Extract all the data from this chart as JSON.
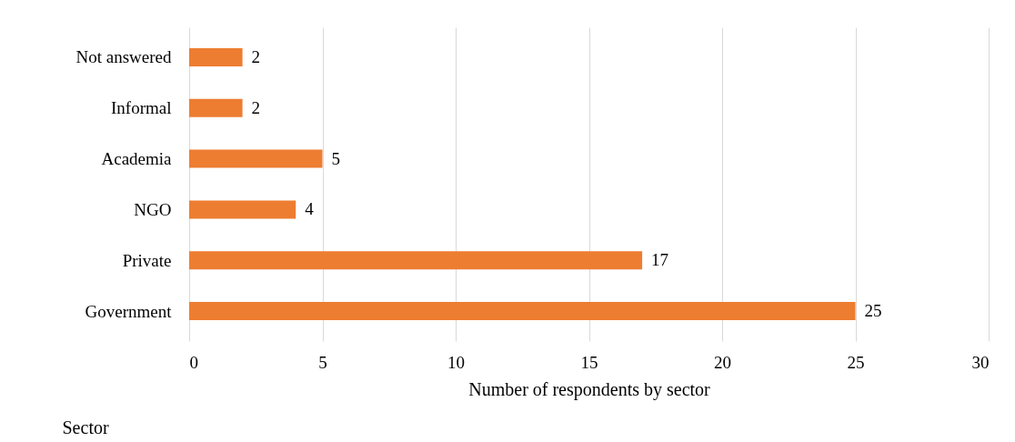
{
  "chart_data": {
    "type": "bar",
    "orientation": "horizontal",
    "xlabel": "Number of respondents by sector",
    "ylabel": "Sector",
    "categories": [
      "Not answered",
      "Informal",
      "Academia",
      "NGO",
      "Private",
      "Government"
    ],
    "values": [
      2,
      2,
      5,
      4,
      17,
      25
    ],
    "color": "#ed7d31",
    "xlim": [
      0,
      30
    ],
    "xticks": [
      0,
      5,
      10,
      15,
      20,
      25,
      30
    ],
    "grid": "x",
    "data_labels": true
  }
}
